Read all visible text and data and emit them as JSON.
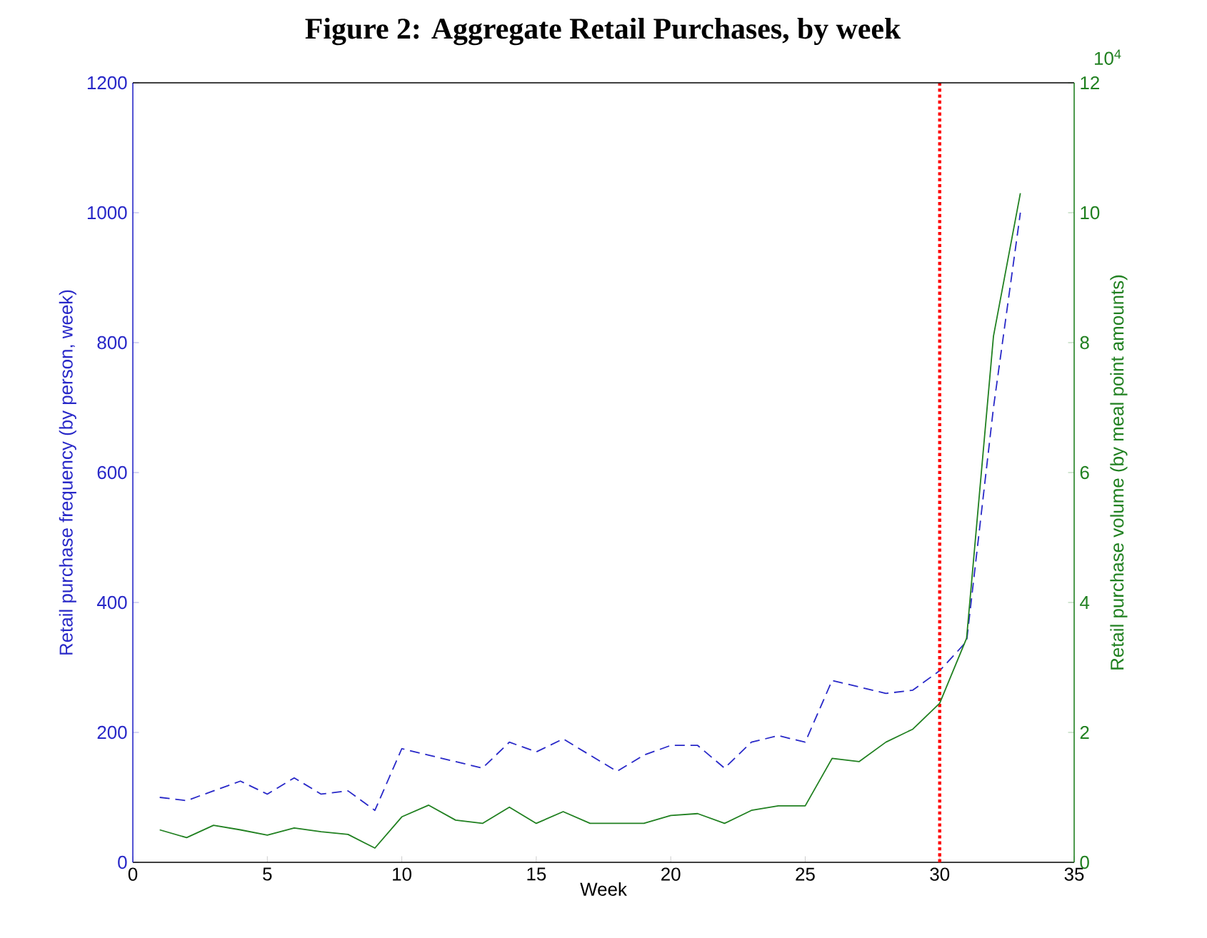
{
  "chart_data": {
    "type": "line",
    "title": "Figure 2: Aggregate Retail Purchases, by week",
    "xlabel": "Week",
    "ylabel": "Retail purchase frequency (by person, week)",
    "y2label": "Retail purchase volume (by meal point amounts)",
    "annotations": [
      "10$^{4}$"
    ],
    "x": [
      1,
      2,
      3,
      4,
      5,
      6,
      7,
      8,
      9,
      10,
      11,
      12,
      13,
      14,
      15,
      16,
      17,
      18,
      19,
      20,
      21,
      22,
      23,
      24,
      25,
      26,
      27,
      28,
      29,
      30,
      31,
      32,
      33
    ],
    "series": [
      {
        "color": "#2828c8",
        "line_style": "dashed",
        "axis": "y",
        "values": [
          100,
          95,
          110,
          125,
          105,
          130,
          105,
          110,
          80,
          175,
          165,
          155,
          145,
          185,
          170,
          190,
          165,
          140,
          165,
          180,
          180,
          145,
          185,
          195,
          185,
          280,
          270,
          260,
          265,
          295,
          340,
          700,
          1000
        ]
      },
      {
        "color": "#208020",
        "line_style": "solid",
        "axis": "y2",
        "values": [
          0.5,
          0.38,
          0.57,
          0.5,
          0.42,
          0.53,
          0.47,
          0.43,
          0.22,
          0.7,
          0.88,
          0.65,
          0.6,
          0.85,
          0.6,
          0.78,
          0.6,
          0.6,
          0.6,
          0.72,
          0.75,
          0.6,
          0.8,
          0.87,
          0.87,
          1.6,
          1.55,
          1.85,
          2.05,
          2.45,
          3.45,
          8.1,
          10.3
        ]
      }
    ],
    "xlim": [
      0,
      35
    ],
    "xticks": [
      0,
      5,
      10,
      15,
      20,
      25,
      30,
      35
    ],
    "ylim": [
      0,
      1200
    ],
    "yticks": [
      0,
      200,
      400,
      600,
      800,
      1000,
      1200
    ],
    "y2lim": [
      0,
      12
    ],
    "y2ticks": [
      0,
      2,
      4,
      6,
      8,
      10,
      12
    ],
    "ref_lines": [
      {
        "axis": "x",
        "value": 30,
        "color": "#ff0000",
        "line_style": "dotted"
      }
    ],
    "grid": false
  }
}
